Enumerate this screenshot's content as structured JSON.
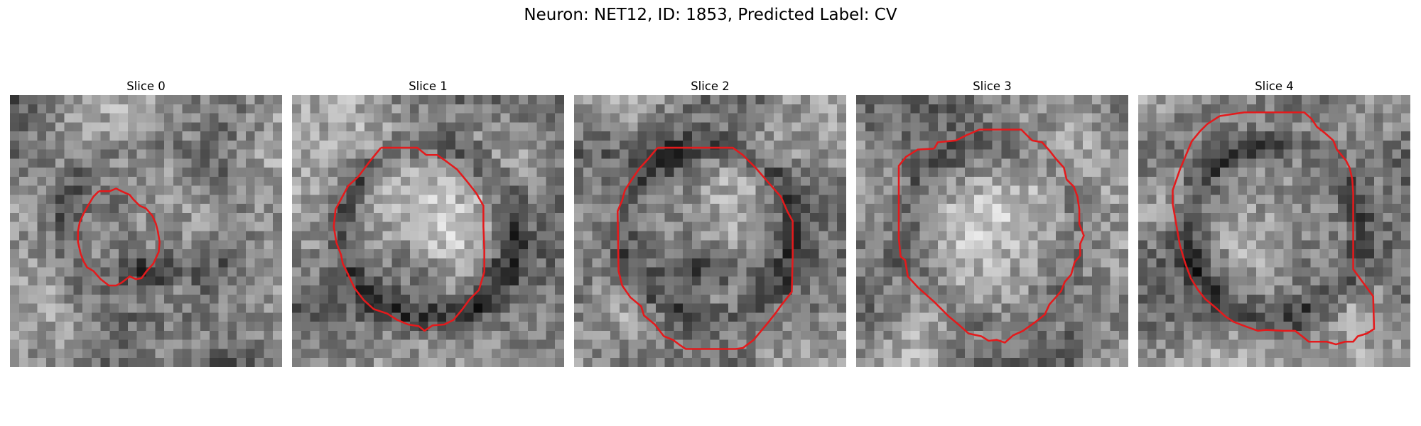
{
  "figure": {
    "title": "Neuron: NET12, ID: 1853, Predicted Label: CV"
  },
  "slices": [
    {
      "title": "Slice 0",
      "seed": 11,
      "dark_ring": 0.35,
      "bright_center": 0.15,
      "dark_lower": 0.8
    },
    {
      "title": "Slice 1",
      "seed": 23,
      "dark_ring": 0.85,
      "bright_center": 0.6,
      "dark_lower": 0.2
    },
    {
      "title": "Slice 2",
      "seed": 37,
      "dark_ring": 0.7,
      "bright_center": 0.25,
      "dark_lower": 0.6
    },
    {
      "title": "Slice 3",
      "seed": 41,
      "dark_ring": 0.3,
      "bright_center": 0.45,
      "dark_lower": 0.1
    },
    {
      "title": "Slice 4",
      "seed": 53,
      "dark_ring": 0.75,
      "bright_center": 0.65,
      "dark_lower": 0.05
    }
  ],
  "colors": {
    "contour": "#e41a1c",
    "background": "#ffffff"
  }
}
